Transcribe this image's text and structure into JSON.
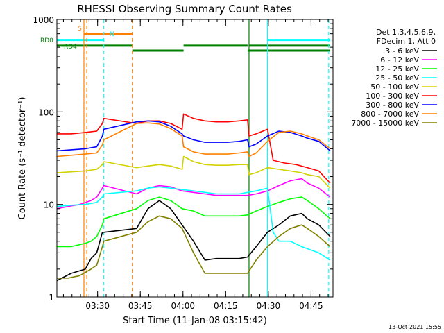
{
  "chart_data": {
    "type": "line",
    "title": "RHESSI Observing Summary Count Rates",
    "xlabel": "Start Time (11-Jan-08 03:15:42)",
    "ylabel": "Count Rate (s⁻¹ detector⁻¹)",
    "y_scale": "log",
    "ylim": [
      1,
      1000
    ],
    "xlim_minutes": [
      0,
      97
    ],
    "x_tick_labels": [
      "03:30",
      "03:45",
      "04:00",
      "04:15",
      "04:30",
      "04:45"
    ],
    "x_tick_minutes": [
      14.3,
      29.3,
      44.3,
      59.3,
      74.3,
      89.3
    ],
    "y_tick_labels": [
      "1",
      "10",
      "100",
      "1000"
    ],
    "y_tick_values": [
      1,
      10,
      100,
      1000
    ],
    "legend_header": [
      "Det 1,3,4,5,6,9,",
      "FDecim 1, Att 0"
    ],
    "footer_date": "13-Oct-2021 15:55",
    "flags": [
      {
        "label": "S",
        "color": "#ff8000"
      },
      {
        "label": "N",
        "color": "#00ffff"
      },
      {
        "label": "RD0",
        "color": "#008000"
      },
      {
        "label": "RD4",
        "color": "#008000"
      }
    ],
    "intervals": [
      {
        "name": "S",
        "color": "#ff8000",
        "level": 700,
        "segments": [
          [
            9.5,
            26.5
          ]
        ]
      },
      {
        "name": "N",
        "color": "#00ffff",
        "level": 600,
        "segments": [
          [
            0,
            16.5
          ],
          [
            74,
            96
          ]
        ]
      },
      {
        "name": "RD0",
        "color": "#008000",
        "level": 520,
        "segments": [
          [
            0,
            26.5
          ],
          [
            44.5,
            67
          ],
          [
            67.5,
            96
          ]
        ]
      },
      {
        "name": "RD4",
        "color": "#008000",
        "level": 460,
        "segments": [
          [
            26.5,
            44.5
          ],
          [
            67,
            96
          ]
        ]
      }
    ],
    "vlines": [
      {
        "x": 9.5,
        "color": "#ff8000",
        "style": "solid"
      },
      {
        "x": 10.5,
        "color": "#ff8000",
        "style": "dashed"
      },
      {
        "x": 16.5,
        "color": "#00ffff",
        "style": "dashed"
      },
      {
        "x": 26.5,
        "color": "#ff8000",
        "style": "dashed"
      },
      {
        "x": 74,
        "color": "#00ffff",
        "style": "solid"
      },
      {
        "x": 95.5,
        "color": "#00ffff",
        "style": "dashed"
      },
      {
        "x": 67.5,
        "color": "#008000",
        "style": "solid"
      }
    ],
    "series": [
      {
        "name": "3 - 6 keV",
        "color": "#000000",
        "points": [
          [
            0,
            1.5
          ],
          [
            5,
            1.8
          ],
          [
            10,
            2
          ],
          [
            12,
            2.6
          ],
          [
            14,
            3
          ],
          [
            16,
            5
          ],
          [
            16.5,
            5
          ],
          [
            28,
            5.5
          ],
          [
            32,
            9
          ],
          [
            36,
            11
          ],
          [
            40,
            9
          ],
          [
            44,
            6
          ],
          [
            48,
            4
          ],
          [
            52,
            2.5
          ],
          [
            56,
            2.6
          ],
          [
            60,
            2.6
          ],
          [
            64,
            2.6
          ],
          [
            67,
            2.7
          ],
          [
            70,
            3.5
          ],
          [
            74,
            5
          ],
          [
            78,
            6
          ],
          [
            82,
            7.5
          ],
          [
            86,
            8
          ],
          [
            88,
            7
          ],
          [
            92,
            6
          ],
          [
            96,
            4.5
          ]
        ]
      },
      {
        "name": "6 - 12 keV",
        "color": "#ff00ff",
        "points": [
          [
            0,
            9
          ],
          [
            4,
            9.5
          ],
          [
            8,
            10
          ],
          [
            12,
            11
          ],
          [
            14,
            12
          ],
          [
            16,
            15
          ],
          [
            16.5,
            16
          ],
          [
            28,
            13
          ],
          [
            32,
            15
          ],
          [
            36,
            16
          ],
          [
            40,
            15.5
          ],
          [
            44,
            14
          ],
          [
            48,
            13.5
          ],
          [
            52,
            13
          ],
          [
            56,
            12.5
          ],
          [
            60,
            12.5
          ],
          [
            64,
            12.5
          ],
          [
            67,
            12.5
          ],
          [
            70,
            13
          ],
          [
            74,
            14
          ],
          [
            78,
            16
          ],
          [
            82,
            18
          ],
          [
            86,
            19
          ],
          [
            88,
            17
          ],
          [
            92,
            15
          ],
          [
            96,
            12
          ]
        ]
      },
      {
        "name": "12 - 25 keV",
        "color": "#00ff00",
        "points": [
          [
            0,
            3.5
          ],
          [
            5,
            3.5
          ],
          [
            10,
            3.8
          ],
          [
            12,
            4
          ],
          [
            14,
            4.5
          ],
          [
            16,
            6
          ],
          [
            16.5,
            7
          ],
          [
            28,
            9
          ],
          [
            32,
            11
          ],
          [
            36,
            12
          ],
          [
            40,
            11
          ],
          [
            44,
            9
          ],
          [
            48,
            8.5
          ],
          [
            52,
            7.5
          ],
          [
            56,
            7.5
          ],
          [
            60,
            7.5
          ],
          [
            64,
            7.5
          ],
          [
            67,
            7.7
          ],
          [
            70,
            8.5
          ],
          [
            74,
            9.5
          ],
          [
            78,
            10.5
          ],
          [
            82,
            11.5
          ],
          [
            86,
            12
          ],
          [
            88,
            11
          ],
          [
            92,
            9
          ],
          [
            96,
            7
          ]
        ]
      },
      {
        "name": "25 - 50 keV",
        "color": "#00ffff",
        "points": [
          [
            0,
            9.5
          ],
          [
            5,
            9.8
          ],
          [
            10,
            10
          ],
          [
            14,
            10.5
          ],
          [
            16,
            12
          ],
          [
            16.5,
            13
          ],
          [
            28,
            14
          ],
          [
            32,
            15
          ],
          [
            36,
            15.5
          ],
          [
            40,
            15
          ],
          [
            44,
            14.5
          ],
          [
            48,
            14
          ],
          [
            52,
            13.5
          ],
          [
            56,
            13
          ],
          [
            60,
            13
          ],
          [
            64,
            13
          ],
          [
            67,
            13.5
          ],
          [
            70,
            14
          ],
          [
            74,
            15
          ],
          [
            76,
            5
          ],
          [
            78,
            4
          ],
          [
            82,
            4
          ],
          [
            86,
            3.5
          ],
          [
            92,
            3
          ],
          [
            96,
            2.5
          ]
        ]
      },
      {
        "name": "50 - 100 keV",
        "color": "#d2d200",
        "points": [
          [
            0,
            22
          ],
          [
            5,
            22.5
          ],
          [
            10,
            23
          ],
          [
            14,
            24
          ],
          [
            16,
            27
          ],
          [
            16.5,
            29
          ],
          [
            28,
            25
          ],
          [
            32,
            26
          ],
          [
            36,
            27
          ],
          [
            40,
            26
          ],
          [
            44,
            24
          ],
          [
            44.5,
            33
          ],
          [
            48,
            29
          ],
          [
            52,
            27
          ],
          [
            56,
            26.5
          ],
          [
            60,
            26.5
          ],
          [
            64,
            27
          ],
          [
            67,
            27
          ],
          [
            67.5,
            21
          ],
          [
            70,
            22
          ],
          [
            74,
            25
          ],
          [
            78,
            24
          ],
          [
            82,
            23
          ],
          [
            86,
            22
          ],
          [
            88,
            21
          ],
          [
            92,
            20
          ],
          [
            96,
            15
          ]
        ]
      },
      {
        "name": "100 - 300 keV",
        "color": "#ff0000",
        "points": [
          [
            0,
            58
          ],
          [
            5,
            58
          ],
          [
            10,
            60
          ],
          [
            14,
            62
          ],
          [
            16,
            75
          ],
          [
            16.5,
            85
          ],
          [
            28,
            75
          ],
          [
            32,
            80
          ],
          [
            36,
            80
          ],
          [
            40,
            75
          ],
          [
            44,
            65
          ],
          [
            44.5,
            95
          ],
          [
            48,
            85
          ],
          [
            52,
            80
          ],
          [
            56,
            78
          ],
          [
            60,
            78
          ],
          [
            64,
            80
          ],
          [
            67,
            82
          ],
          [
            67.5,
            55
          ],
          [
            70,
            58
          ],
          [
            74,
            65
          ],
          [
            76,
            30
          ],
          [
            80,
            28
          ],
          [
            84,
            27
          ],
          [
            88,
            25
          ],
          [
            92,
            23
          ],
          [
            96,
            17
          ]
        ]
      },
      {
        "name": "300 - 800 keV",
        "color": "#0000ff",
        "points": [
          [
            0,
            38
          ],
          [
            5,
            39
          ],
          [
            10,
            40
          ],
          [
            14,
            42
          ],
          [
            16,
            55
          ],
          [
            16.5,
            65
          ],
          [
            28,
            78
          ],
          [
            32,
            80
          ],
          [
            36,
            78
          ],
          [
            40,
            70
          ],
          [
            44,
            58
          ],
          [
            44.5,
            55
          ],
          [
            48,
            50
          ],
          [
            52,
            47
          ],
          [
            56,
            47
          ],
          [
            60,
            47
          ],
          [
            64,
            48
          ],
          [
            67,
            50
          ],
          [
            67.5,
            42
          ],
          [
            70,
            45
          ],
          [
            74,
            55
          ],
          [
            78,
            62
          ],
          [
            82,
            60
          ],
          [
            86,
            55
          ],
          [
            88,
            52
          ],
          [
            92,
            48
          ],
          [
            96,
            38
          ]
        ]
      },
      {
        "name": "800 - 7000 keV",
        "color": "#ff8000",
        "points": [
          [
            0,
            33
          ],
          [
            5,
            34
          ],
          [
            10,
            35
          ],
          [
            14,
            36
          ],
          [
            16,
            44
          ],
          [
            16.5,
            50
          ],
          [
            28,
            75
          ],
          [
            32,
            76
          ],
          [
            36,
            74
          ],
          [
            40,
            66
          ],
          [
            44,
            55
          ],
          [
            44.5,
            42
          ],
          [
            48,
            37
          ],
          [
            52,
            35
          ],
          [
            56,
            35
          ],
          [
            60,
            35
          ],
          [
            64,
            36
          ],
          [
            67,
            37
          ],
          [
            67.5,
            33
          ],
          [
            70,
            36
          ],
          [
            74,
            48
          ],
          [
            78,
            60
          ],
          [
            82,
            62
          ],
          [
            86,
            58
          ],
          [
            88,
            55
          ],
          [
            92,
            50
          ],
          [
            96,
            40
          ]
        ]
      },
      {
        "name": "7000 - 15000 keV",
        "color": "#808000",
        "points": [
          [
            0,
            1.6
          ],
          [
            4,
            1.6
          ],
          [
            8,
            1.7
          ],
          [
            12,
            2
          ],
          [
            14,
            2.2
          ],
          [
            16,
            3.5
          ],
          [
            16.5,
            4
          ],
          [
            28,
            5
          ],
          [
            32,
            6.5
          ],
          [
            36,
            7.5
          ],
          [
            40,
            7
          ],
          [
            44,
            5.5
          ],
          [
            48,
            3
          ],
          [
            52,
            1.8
          ],
          [
            56,
            1.8
          ],
          [
            60,
            1.8
          ],
          [
            64,
            1.8
          ],
          [
            67,
            1.8
          ],
          [
            70,
            2.5
          ],
          [
            74,
            3.5
          ],
          [
            78,
            4.5
          ],
          [
            82,
            5.5
          ],
          [
            86,
            6
          ],
          [
            88,
            5.5
          ],
          [
            92,
            4.5
          ],
          [
            96,
            3.5
          ]
        ]
      }
    ]
  }
}
